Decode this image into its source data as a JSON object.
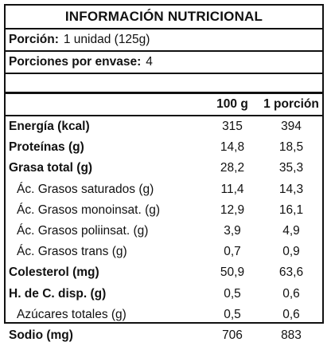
{
  "label": {
    "title": "INFORMACIÓN NUTRICIONAL",
    "portion_label": "Porción:",
    "portion_value": "1 unidad (125g)",
    "servings_label": "Porciones por envase:",
    "servings_value": "4",
    "col1_header": "100 g",
    "col2_header": "1 porción",
    "rows": [
      {
        "name": "Energía (kcal)",
        "v1": "315",
        "v2": "394"
      },
      {
        "name": "Proteínas (g)",
        "v1": "14,8",
        "v2": "18,5"
      },
      {
        "name": "Grasa total (g)",
        "v1": "28,2",
        "v2": "35,3"
      },
      {
        "name": "Ác. Grasos saturados (g)",
        "v1": "11,4",
        "v2": "14,3"
      },
      {
        "name": "Ác. Grasos monoinsat. (g)",
        "v1": "12,9",
        "v2": "16,1"
      },
      {
        "name": "Ác. Grasos poliinsat. (g)",
        "v1": "3,9",
        "v2": "4,9"
      },
      {
        "name": "Ác. Grasos trans (g)",
        "v1": "0,7",
        "v2": "0,9"
      },
      {
        "name": "Colesterol (mg)",
        "v1": "50,9",
        "v2": "63,6"
      },
      {
        "name": "H. de C. disp. (g)",
        "v1": "0,5",
        "v2": "0,6"
      },
      {
        "name": "Azúcares totales (g)",
        "v1": "0,5",
        "v2": "0,6"
      },
      {
        "name": "Sodio (mg)",
        "v1": "706",
        "v2": "883"
      }
    ]
  }
}
